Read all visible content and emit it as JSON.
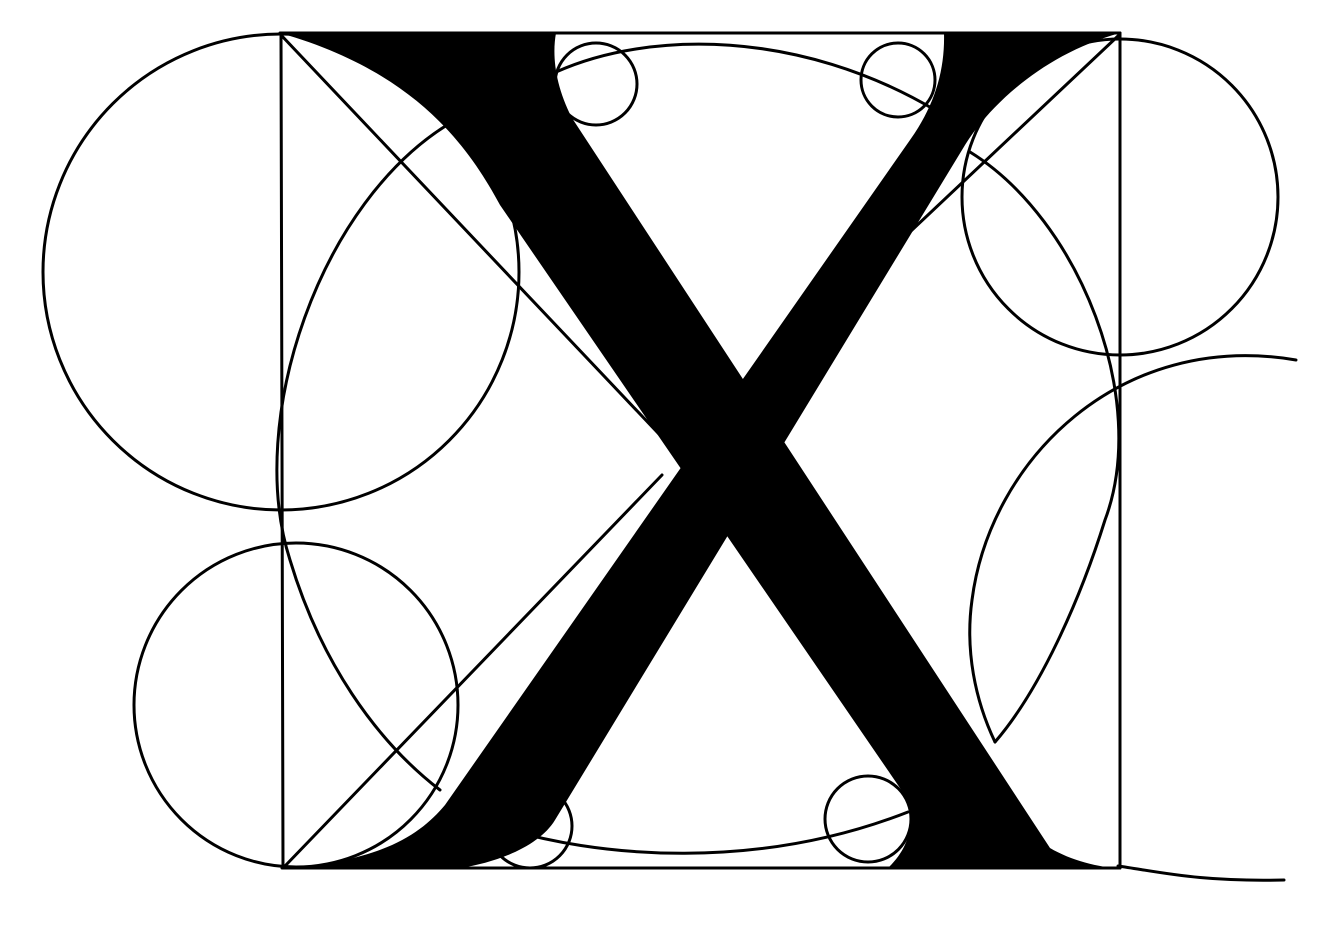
{
  "diagram": {
    "subject": "X",
    "ink_color": "#000000",
    "paper_color": "#ffffff"
  }
}
